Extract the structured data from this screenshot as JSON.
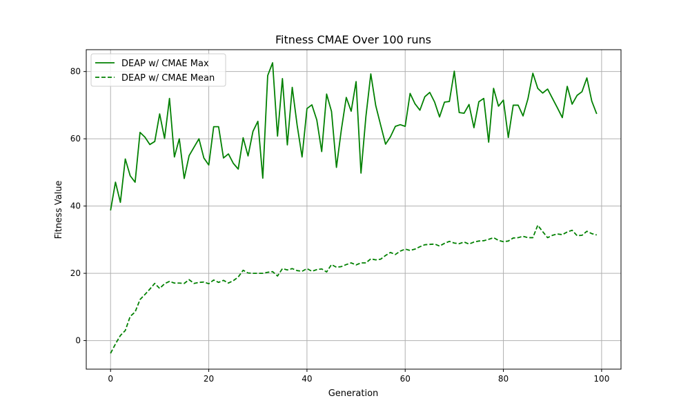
{
  "chart_data": {
    "type": "line",
    "title": "Fitness CMAE Over 100 runs",
    "xlabel": "Generation",
    "ylabel": "Fitness Value",
    "xlim": [
      -4.95,
      103.95
    ],
    "ylim": [
      -8.5,
      86.5
    ],
    "xticks": [
      0,
      20,
      40,
      60,
      80,
      100
    ],
    "yticks": [
      0,
      20,
      40,
      60,
      80
    ],
    "grid": true,
    "legend_position": "top-left",
    "x": [
      0,
      1,
      2,
      3,
      4,
      5,
      6,
      7,
      8,
      9,
      10,
      11,
      12,
      13,
      14,
      15,
      16,
      17,
      18,
      19,
      20,
      21,
      22,
      23,
      24,
      25,
      26,
      27,
      28,
      29,
      30,
      31,
      32,
      33,
      34,
      35,
      36,
      37,
      38,
      39,
      40,
      41,
      42,
      43,
      44,
      45,
      46,
      47,
      48,
      49,
      50,
      51,
      52,
      53,
      54,
      55,
      56,
      57,
      58,
      59,
      60,
      61,
      62,
      63,
      64,
      65,
      66,
      67,
      68,
      69,
      70,
      71,
      72,
      73,
      74,
      75,
      76,
      77,
      78,
      79,
      80,
      81,
      82,
      83,
      84,
      85,
      86,
      87,
      88,
      89,
      90,
      91,
      92,
      93,
      94,
      95,
      96,
      97,
      98,
      99
    ],
    "series": [
      {
        "name": "DEAP w/ CMAE Max",
        "color": "#008000",
        "style": "solid",
        "values": [
          38.7,
          47.1,
          41.1,
          54.0,
          49.0,
          47.1,
          61.9,
          60.5,
          58.3,
          59.2,
          67.4,
          60.1,
          72.0,
          54.6,
          60.0,
          48.2,
          55.0,
          57.5,
          60.0,
          54.3,
          52.2,
          63.6,
          63.6,
          54.3,
          55.5,
          52.7,
          51.0,
          60.3,
          54.9,
          62.2,
          65.2,
          48.3,
          78.8,
          82.6,
          60.8,
          77.9,
          58.2,
          75.3,
          64.0,
          54.6,
          69.0,
          70.1,
          65.6,
          56.2,
          73.3,
          68.1,
          51.5,
          62.7,
          72.3,
          68.2,
          77.0,
          49.8,
          66.6,
          79.3,
          69.9,
          64.1,
          58.4,
          60.6,
          63.7,
          64.2,
          63.7,
          73.5,
          70.4,
          68.5,
          72.5,
          73.8,
          70.9,
          66.5,
          70.9,
          71.1,
          80.1,
          67.8,
          67.6,
          70.2,
          63.3,
          71.0,
          72.0,
          59.0,
          75.0,
          69.7,
          71.5,
          60.4,
          70.0,
          70.0,
          66.8,
          71.9,
          79.5,
          75.0,
          73.6,
          74.8,
          72.0,
          69.2,
          66.3,
          75.6,
          70.3,
          72.9,
          74.0,
          78.1,
          71.2,
          67.4
        ]
      },
      {
        "name": "DEAP w/ CMAE Mean",
        "color": "#008000",
        "style": "dashed",
        "values": [
          -3.8,
          -1.0,
          1.5,
          3.0,
          7.2,
          8.5,
          12.2,
          13.7,
          15.3,
          17.0,
          15.5,
          16.9,
          17.6,
          17.1,
          17.1,
          17.0,
          18.1,
          17.0,
          17.3,
          17.4,
          16.9,
          18.0,
          17.3,
          17.9,
          17.1,
          17.8,
          18.9,
          20.9,
          20.1,
          20.0,
          20.0,
          20.0,
          20.3,
          20.5,
          19.2,
          21.4,
          21.0,
          21.4,
          20.8,
          20.6,
          21.4,
          20.6,
          21.1,
          21.3,
          20.4,
          22.6,
          21.8,
          22.0,
          22.6,
          23.1,
          22.5,
          23.1,
          23.1,
          24.3,
          24.0,
          24.2,
          25.3,
          26.2,
          25.6,
          26.6,
          27.2,
          26.8,
          27.2,
          27.9,
          28.5,
          28.6,
          28.7,
          28.1,
          28.9,
          29.5,
          29.0,
          28.8,
          29.3,
          28.7,
          29.3,
          29.6,
          29.7,
          30.1,
          30.6,
          29.8,
          29.4,
          29.6,
          30.5,
          30.6,
          31.0,
          30.6,
          30.6,
          34.3,
          32.4,
          30.6,
          31.3,
          31.7,
          31.5,
          32.3,
          32.8,
          31.2,
          31.3,
          32.5,
          31.8,
          31.4
        ]
      }
    ]
  }
}
